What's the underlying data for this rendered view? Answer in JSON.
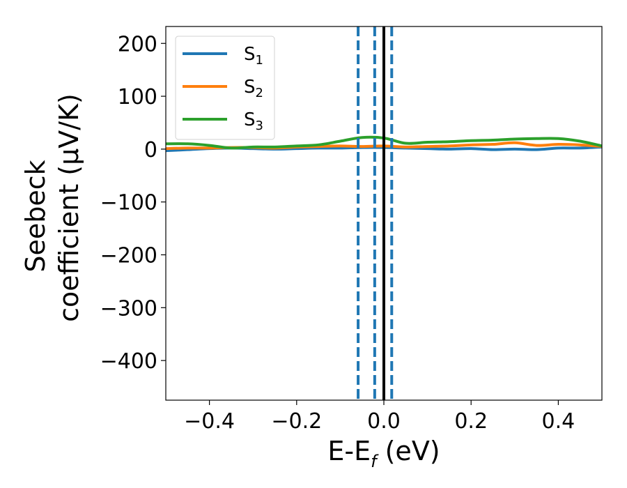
{
  "chart_data": {
    "type": "line",
    "xlabel": "E-E",
    "xlabel_sub": "f",
    "xlabel_unit": " (eV)",
    "ylabel_line1": "Seebeck",
    "ylabel_line2": "coefficient  (μV/K)",
    "xlim": [
      -0.5,
      0.5
    ],
    "ylim": [
      -475,
      232
    ],
    "xticks": [
      -0.4,
      -0.2,
      0.0,
      0.2,
      0.4
    ],
    "xtick_labels": [
      "−0.4",
      "−0.2",
      "0.0",
      "0.2",
      "0.4"
    ],
    "yticks": [
      200,
      100,
      0,
      -100,
      -200,
      -300,
      -400
    ],
    "ytick_labels": [
      "200",
      "100",
      "0",
      "−100",
      "−200",
      "−300",
      "−400"
    ],
    "legend_position": "top-left",
    "series": [
      {
        "name": "S",
        "sub": "1",
        "color": "#1f77b4",
        "x": [
          -0.5,
          -0.45,
          -0.4,
          -0.35,
          -0.3,
          -0.25,
          -0.2,
          -0.15,
          -0.1,
          -0.05,
          0.0,
          0.05,
          0.1,
          0.15,
          0.2,
          0.25,
          0.3,
          0.35,
          0.4,
          0.45,
          0.5
        ],
        "y": [
          -3,
          -1,
          1,
          2,
          1,
          0,
          1,
          2,
          2,
          3,
          3,
          2,
          1,
          0,
          1,
          -1,
          0,
          -1,
          2,
          2,
          4
        ]
      },
      {
        "name": "S",
        "sub": "2",
        "color": "#ff7f0e",
        "x": [
          -0.5,
          -0.45,
          -0.4,
          -0.35,
          -0.3,
          -0.25,
          -0.2,
          -0.15,
          -0.1,
          -0.05,
          0.0,
          0.05,
          0.1,
          0.15,
          0.2,
          0.25,
          0.3,
          0.35,
          0.4,
          0.45,
          0.5
        ],
        "y": [
          1,
          2,
          2,
          3,
          3,
          2,
          4,
          5,
          6,
          5,
          6,
          4,
          5,
          6,
          8,
          9,
          12,
          7,
          9,
          8,
          5
        ]
      },
      {
        "name": "S",
        "sub": "3",
        "color": "#2ca02c",
        "x": [
          -0.5,
          -0.45,
          -0.4,
          -0.35,
          -0.3,
          -0.25,
          -0.2,
          -0.15,
          -0.1,
          -0.05,
          0.0,
          0.05,
          0.1,
          0.15,
          0.2,
          0.25,
          0.3,
          0.35,
          0.4,
          0.45,
          0.5
        ],
        "y": [
          10,
          10,
          7,
          2,
          4,
          4,
          6,
          8,
          15,
          22,
          21,
          11,
          13,
          14,
          16,
          17,
          19,
          20,
          20,
          15,
          6
        ]
      }
    ],
    "vlines": [
      {
        "x": -0.059,
        "color": "#1f77b4",
        "style": "dashed"
      },
      {
        "x": -0.021,
        "color": "#1f77b4",
        "style": "dashed"
      },
      {
        "x": 0.0,
        "color": "#000000",
        "style": "solid"
      },
      {
        "x": 0.018,
        "color": "#1f77b4",
        "style": "dashed"
      }
    ]
  }
}
